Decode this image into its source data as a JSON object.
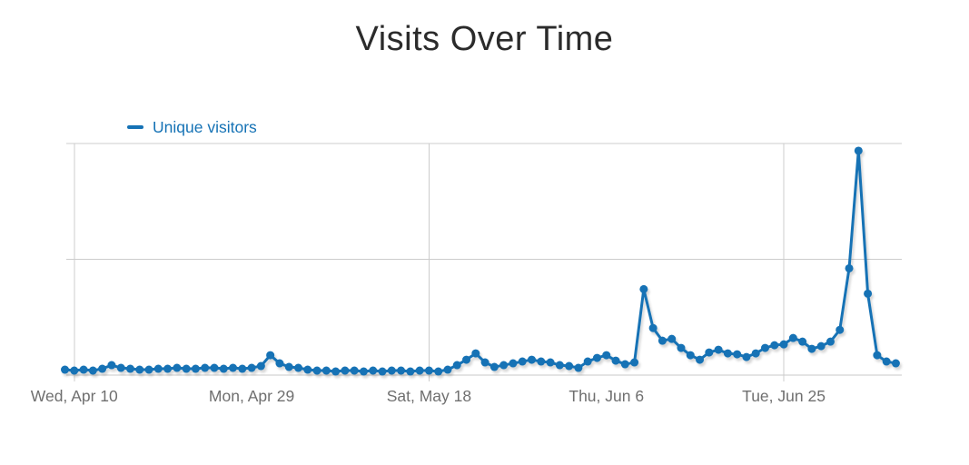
{
  "page": {
    "title": "Visits Over Time"
  },
  "legend": {
    "series_label": "Unique visitors"
  },
  "colors": {
    "accent": "#1572b5",
    "grid": "#cccccc",
    "axis_line": "#c9c9c9",
    "tick_label_gray": "#6f6f6f",
    "title_text": "#2b2b2b",
    "background": "#ffffff"
  },
  "chart_data": {
    "type": "line",
    "title": "Visits Over Time",
    "xlabel": "",
    "ylabel": "",
    "y_axis_labels_visible": false,
    "ylim": [
      0,
      256
    ],
    "y_gridlines": [
      0,
      128,
      256
    ],
    "legend_position": "top-left",
    "marker": "circle",
    "x": {
      "start_date": "2019-04-09",
      "end_date": "2019-07-07",
      "frequency": "daily",
      "num_points": 90
    },
    "x_ticks": [
      {
        "label": "Wed, Apr 10",
        "index": 1,
        "gridline": true
      },
      {
        "label": "Mon, Apr 29",
        "index": 20,
        "gridline": false
      },
      {
        "label": "Sat, May 18",
        "index": 39,
        "gridline": true
      },
      {
        "label": "Thu, Jun 6",
        "index": 58,
        "gridline": false
      },
      {
        "label": "Tue, Jun 25",
        "index": 77,
        "gridline": true
      }
    ],
    "series": [
      {
        "name": "Unique visitors",
        "color": "#1572b5",
        "values": [
          6,
          5,
          6,
          5,
          7,
          11,
          8,
          7,
          6,
          6,
          7,
          7,
          8,
          7,
          7,
          8,
          8,
          7,
          8,
          7,
          8,
          10,
          22,
          13,
          9,
          8,
          6,
          5,
          5,
          4,
          5,
          5,
          4,
          5,
          4,
          5,
          5,
          4,
          5,
          5,
          4,
          6,
          11,
          17,
          24,
          14,
          9,
          11,
          13,
          15,
          17,
          15,
          14,
          11,
          10,
          8,
          15,
          19,
          22,
          16,
          12,
          14,
          95,
          52,
          38,
          40,
          30,
          22,
          17,
          25,
          28,
          24,
          23,
          20,
          24,
          30,
          33,
          34,
          41,
          37,
          29,
          32,
          37,
          50,
          118,
          248,
          90,
          22,
          15,
          13
        ]
      }
    ]
  }
}
